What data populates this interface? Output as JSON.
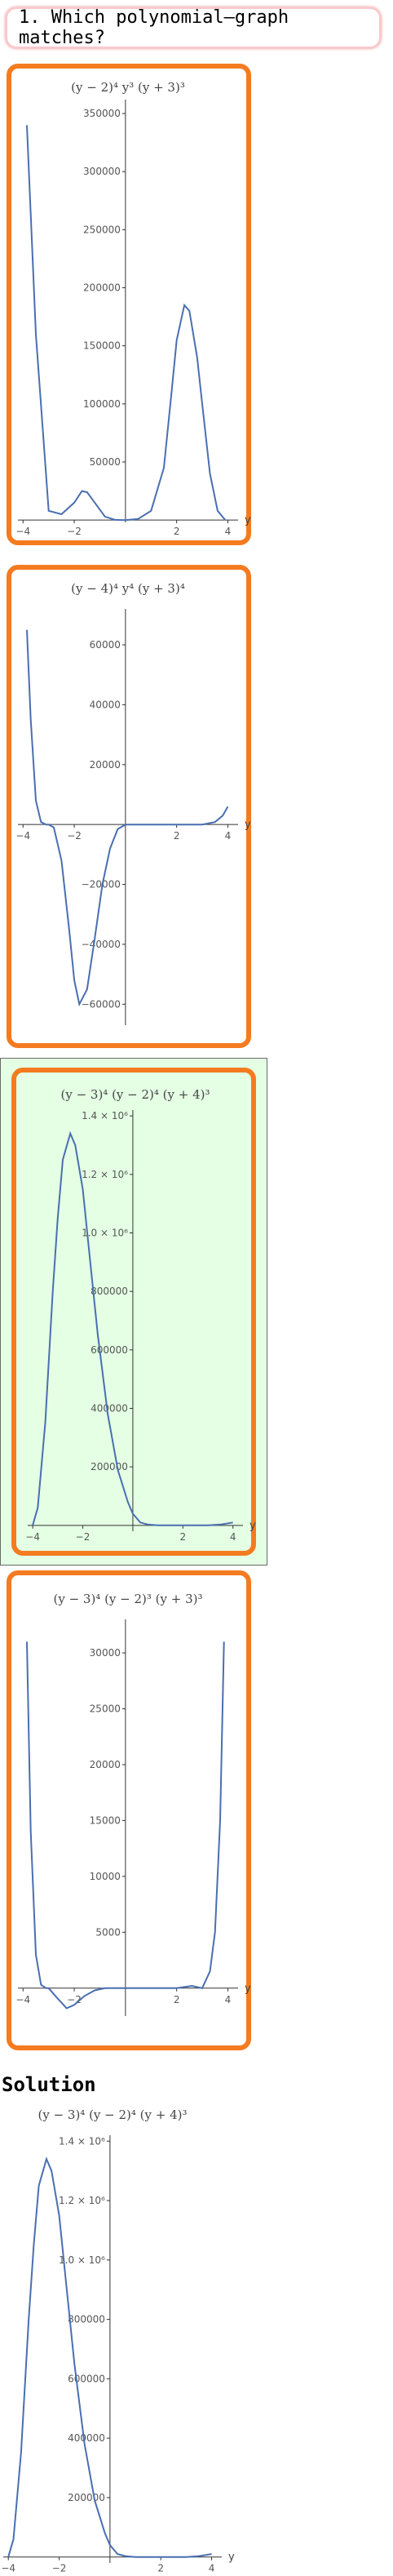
{
  "question": {
    "text": "1. Which polynomial–graph matches?"
  },
  "solution": {
    "heading": "Solution"
  },
  "chart_data": [
    {
      "type": "line",
      "title": "(y − 2)⁴ y³ (y + 3)³",
      "xlabel": "y",
      "xlim": [
        -4.2,
        4.4
      ],
      "ylim": [
        -2000,
        362000
      ],
      "x_ticks": [
        -4,
        -2,
        2,
        4
      ],
      "y_ticks": [
        50000,
        100000,
        150000,
        200000,
        250000,
        300000,
        350000
      ],
      "y_tick_labels": [
        "50000",
        "100000",
        "150000",
        "200000",
        "250000",
        "300000",
        "350000"
      ],
      "x_tick_labels": [
        "−4",
        "−2",
        "2",
        "4"
      ],
      "series": [
        {
          "x": [
            -3.85,
            -3.5,
            -3.0,
            -2.5,
            -2.0,
            -1.7,
            -1.5,
            -1.2,
            -0.8,
            -0.4,
            0.0,
            0.5,
            1.0,
            1.5,
            1.8,
            2.0,
            2.3,
            2.5,
            2.8,
            3.0,
            3.3,
            3.6,
            3.9
          ],
          "y": [
            340000,
            160000,
            8000,
            5000,
            15000,
            25000,
            24000,
            15000,
            3000,
            200,
            0,
            1000,
            8000,
            45000,
            110000,
            155000,
            185000,
            180000,
            140000,
            100000,
            40000,
            8000,
            0
          ]
        }
      ]
    },
    {
      "type": "line",
      "title": "(y − 4)⁴ y⁴ (y + 3)⁴",
      "xlabel": "y",
      "xlim": [
        -4.2,
        4.4
      ],
      "ylim": [
        -67000,
        72000
      ],
      "x_ticks": [
        -4,
        -2,
        2,
        4
      ],
      "x_tick_labels": [
        "−4",
        "−2",
        "2",
        "4"
      ],
      "y_ticks": [
        -60000,
        -40000,
        -20000,
        20000,
        40000,
        60000
      ],
      "y_tick_labels": [
        "−60000",
        "−40000",
        "−20000",
        "20000",
        "40000",
        "60000"
      ],
      "series": [
        {
          "x": [
            -3.85,
            -3.7,
            -3.5,
            -3.3,
            -3.1,
            -3.0,
            -2.8,
            -2.5,
            -2.2,
            -2.0,
            -1.8,
            -1.5,
            -1.2,
            -0.9,
            -0.6,
            -0.3,
            0.0,
            0.5,
            1.0,
            2.0,
            3.0,
            3.5,
            3.8,
            4.0
          ],
          "y": [
            65000,
            35000,
            8000,
            800,
            0,
            0,
            -1000,
            -12000,
            -35000,
            -52000,
            -60000,
            -55000,
            -38000,
            -20000,
            -8000,
            -1500,
            0,
            0,
            0,
            0,
            0,
            800,
            3000,
            6000
          ]
        }
      ]
    },
    {
      "type": "line",
      "title": "(y − 3)⁴ (y − 2)⁴ (y + 4)³",
      "xlabel": "y",
      "xlim": [
        -4.2,
        4.4
      ],
      "ylim": [
        -20000,
        1420000
      ],
      "x_ticks": [
        -4,
        -2,
        2,
        4
      ],
      "x_tick_labels": [
        "−4",
        "−2",
        "2",
        "4"
      ],
      "y_ticks": [
        200000,
        400000,
        600000,
        800000,
        1000000,
        1200000,
        1400000
      ],
      "y_tick_labels": [
        "200000",
        "400000",
        "600000",
        "800000",
        "1.0 × 10⁶",
        "1.2 × 10⁶",
        "1.4 × 10⁶"
      ],
      "series": [
        {
          "x": [
            -4.0,
            -3.8,
            -3.5,
            -3.2,
            -3.0,
            -2.8,
            -2.5,
            -2.3,
            -2.0,
            -1.7,
            -1.4,
            -1.0,
            -0.6,
            -0.2,
            0.0,
            0.3,
            0.6,
            1.0,
            1.5,
            2.0,
            3.0,
            3.5,
            4.0
          ],
          "y": [
            0,
            60000,
            350000,
            800000,
            1050000,
            1250000,
            1340000,
            1300000,
            1150000,
            900000,
            650000,
            380000,
            190000,
            80000,
            40000,
            10000,
            3000,
            0,
            0,
            0,
            0,
            3000,
            10000
          ]
        }
      ]
    },
    {
      "type": "line",
      "title": "(y − 3)⁴ (y − 2)³ (y + 3)³",
      "xlabel": "y",
      "xlim": [
        -4.2,
        4.4
      ],
      "ylim": [
        -2500,
        33000
      ],
      "x_ticks": [
        -4,
        -2,
        2,
        4
      ],
      "x_tick_labels": [
        "−4",
        "−2",
        "2",
        "4"
      ],
      "y_ticks": [
        5000,
        10000,
        15000,
        20000,
        25000,
        30000
      ],
      "y_tick_labels": [
        "5000",
        "10000",
        "15000",
        "20000",
        "25000",
        "30000"
      ],
      "series": [
        {
          "x": [
            -3.85,
            -3.7,
            -3.5,
            -3.3,
            -3.1,
            -3.0,
            -2.7,
            -2.3,
            -2.0,
            -1.6,
            -1.2,
            -0.8,
            -0.4,
            0.0,
            1.0,
            2.0,
            2.6,
            3.0,
            3.3,
            3.5,
            3.7,
            3.85
          ],
          "y": [
            31000,
            14000,
            3000,
            300,
            0,
            0,
            -800,
            -1800,
            -1500,
            -700,
            -200,
            0,
            0,
            0,
            0,
            0,
            200,
            0,
            1500,
            5000,
            15000,
            31000
          ]
        }
      ]
    },
    {
      "type": "line",
      "title": "(y − 3)⁴ (y − 2)⁴ (y + 4)³",
      "xlabel": "y",
      "xlim": [
        -4.2,
        4.4
      ],
      "ylim": [
        -20000,
        1420000
      ],
      "x_ticks": [
        -4,
        -2,
        2,
        4
      ],
      "x_tick_labels": [
        "−4",
        "−2",
        "2",
        "4"
      ],
      "y_ticks": [
        200000,
        400000,
        600000,
        800000,
        1000000,
        1200000,
        1400000
      ],
      "y_tick_labels": [
        "200000",
        "400000",
        "600000",
        "800000",
        "1.0 × 10⁶",
        "1.2 × 10⁶",
        "1.4 × 10⁶"
      ],
      "series": [
        {
          "x": [
            -4.0,
            -3.8,
            -3.5,
            -3.2,
            -3.0,
            -2.8,
            -2.5,
            -2.3,
            -2.0,
            -1.7,
            -1.4,
            -1.0,
            -0.6,
            -0.2,
            0.0,
            0.3,
            0.6,
            1.0,
            1.5,
            2.0,
            3.0,
            3.5,
            4.0
          ],
          "y": [
            0,
            60000,
            350000,
            800000,
            1050000,
            1250000,
            1340000,
            1300000,
            1150000,
            900000,
            650000,
            380000,
            190000,
            80000,
            40000,
            10000,
            3000,
            0,
            0,
            0,
            0,
            3000,
            10000
          ]
        }
      ]
    }
  ]
}
